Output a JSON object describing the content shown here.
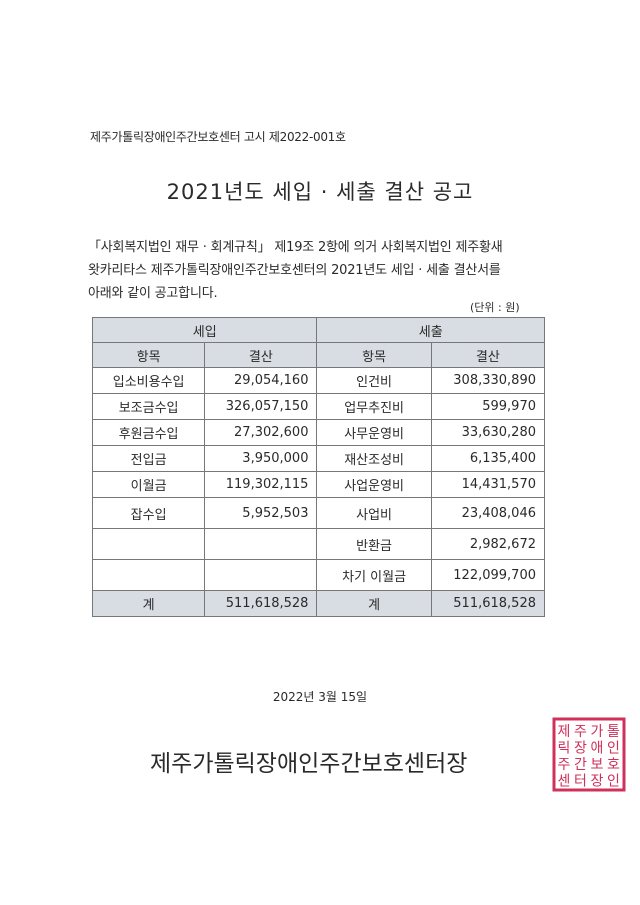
{
  "notice_number": "제주가톨릭장애인주간보호센터 고시 제2022-001호",
  "title": "2021년도 세입 · 세출 결산 공고",
  "body_lines": [
    "「사회복지법인 재무 · 회계규칙」 제19조 2항에 의거 사회복지법인 제주황새",
    "왓카리타스 제주가톨릭장애인주간보호센터의 2021년도 세입 · 세출 결산서를",
    "아래와 같이 공고합니다."
  ],
  "unit": "(단위 : 원)",
  "table": {
    "revenue_header": "세입",
    "expense_header": "세출",
    "col_item": "항목",
    "col_amount": "결산",
    "rows": [
      {
        "rev_item": "입소비용수입",
        "rev_amount": "29,054,160",
        "exp_item": "인건비",
        "exp_amount": "308,330,890"
      },
      {
        "rev_item": "보조금수입",
        "rev_amount": "326,057,150",
        "exp_item": "업무추진비",
        "exp_amount": "599,970"
      },
      {
        "rev_item": "후원금수입",
        "rev_amount": "27,302,600",
        "exp_item": "사무운영비",
        "exp_amount": "33,630,280"
      },
      {
        "rev_item": "전입금",
        "rev_amount": "3,950,000",
        "exp_item": "재산조성비",
        "exp_amount": "6,135,400"
      },
      {
        "rev_item": "이월금",
        "rev_amount": "119,302,115",
        "exp_item": "사업운영비",
        "exp_amount": "14,431,570"
      },
      {
        "rev_item": "잡수입",
        "rev_amount": "5,952,503",
        "exp_item": "사업비",
        "exp_amount": "23,408,046"
      },
      {
        "rev_item": "",
        "rev_amount": "",
        "exp_item": "반환금",
        "exp_amount": "2,982,672"
      },
      {
        "rev_item": "",
        "rev_amount": "",
        "exp_item": "차기 이월금",
        "exp_amount": "122,099,700"
      }
    ],
    "total_label": "계",
    "rev_total": "511,618,528",
    "exp_total": "511,618,528"
  },
  "date": "2022년 3월 15일",
  "signer": "제주가톨릭장애인주간보호센터장",
  "seal": {
    "text": [
      "제",
      "주",
      "가",
      "톨",
      "릭",
      "장",
      "애",
      "인",
      "주",
      "간",
      "보",
      "호",
      "센",
      "터",
      "장",
      "인"
    ],
    "color": "#d0305a"
  },
  "header_fill_color": "#d8dde3"
}
